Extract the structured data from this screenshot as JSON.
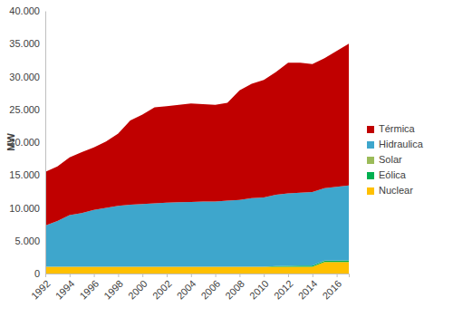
{
  "chart_data": {
    "type": "area",
    "stacked": true,
    "grid": false,
    "legend": "right",
    "y_label": "MW",
    "x": [
      1992,
      1993,
      1994,
      1995,
      1996,
      1997,
      1998,
      1999,
      2000,
      2001,
      2002,
      2003,
      2004,
      2005,
      2006,
      2007,
      2008,
      2009,
      2010,
      2011,
      2012,
      2013,
      2014,
      2015,
      2016,
      2017
    ],
    "xlim": [
      1992,
      2017
    ],
    "xticks": [
      1992,
      1994,
      1996,
      1998,
      2000,
      2002,
      2004,
      2006,
      2008,
      2010,
      2012,
      2014,
      2016
    ],
    "ylim": [
      0,
      40000
    ],
    "yticks": [
      0,
      {
        "value": 5000,
        "label": "5.000"
      },
      {
        "value": 10000,
        "label": "10.000"
      },
      {
        "value": 15000,
        "label": "15.000"
      },
      {
        "value": 20000,
        "label": "20.000"
      },
      {
        "value": 25000,
        "label": "25.000"
      },
      {
        "value": 30000,
        "label": "30.000"
      },
      {
        "value": 35000,
        "label": "35.000"
      },
      {
        "value": 40000,
        "label": "40.000"
      }
    ],
    "series": [
      {
        "name": "Nuclear",
        "color": "#ffc000",
        "values": [
          1018,
          1018,
          1018,
          1018,
          1018,
          1018,
          1018,
          1018,
          1018,
          1018,
          1018,
          1018,
          1018,
          1018,
          1018,
          1018,
          1018,
          1018,
          1018,
          1018,
          1018,
          1018,
          1018,
          1755,
          1755,
          1755
        ]
      },
      {
        "name": "Eólica",
        "color": "#00b050",
        "values": [
          0,
          0,
          0,
          0,
          0,
          0,
          0,
          0,
          0,
          27,
          27,
          27,
          27,
          27,
          27,
          27,
          27,
          27,
          27,
          110,
          140,
          190,
          190,
          190,
          190,
          230
        ]
      },
      {
        "name": "Solar",
        "color": "#9bbb59",
        "values": [
          0,
          0,
          0,
          0,
          0,
          0,
          0,
          0,
          0,
          0,
          0,
          0,
          0,
          0,
          0,
          0,
          0,
          0,
          0,
          0,
          8,
          8,
          8,
          8,
          8,
          8
        ]
      },
      {
        "name": "Hidraulica",
        "color": "#3ea6cc",
        "values": [
          6282,
          6982,
          7882,
          8182,
          8682,
          8982,
          9282,
          9482,
          9582,
          9655,
          9755,
          9805,
          9855,
          9905,
          9905,
          10055,
          10155,
          10455,
          10555,
          10872,
          11034,
          11084,
          11184,
          11047,
          11247,
          11407
        ]
      },
      {
        "name": "Térmica",
        "color": "#c00000",
        "values": [
          8200,
          8300,
          8800,
          9300,
          9500,
          10100,
          11000,
          12800,
          13600,
          14600,
          14700,
          14850,
          15000,
          14850,
          14750,
          14900,
          16700,
          17400,
          17900,
          18700,
          19900,
          19800,
          19500,
          19800,
          20700,
          21600
        ]
      }
    ]
  }
}
